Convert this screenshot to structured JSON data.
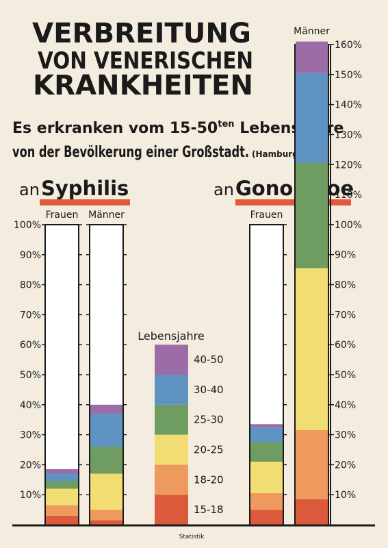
{
  "chart_data": {
    "type": "stacked-bar",
    "title_lines": [
      "VERBREITUNG",
      "VON VENERISCHEN",
      "KRANKHEITEN"
    ],
    "subtitle": {
      "pre": "Es erkranken vom 15-50",
      "sup": "ten",
      "post": " Lebensjahre",
      "line2": "von der Bevölkerung einer Großstadt.",
      "note": "(Hamburg)"
    },
    "panels": [
      {
        "prefix": "an",
        "name": "Syphilis"
      },
      {
        "prefix": "an",
        "name": "Gonorrhoe"
      }
    ],
    "categories": [
      "Frauen",
      "Männer",
      "Frauen",
      "Männer"
    ],
    "bar_axis": [
      "y",
      "y",
      "y",
      "y2"
    ],
    "legend_title": "Lebensjahre",
    "series": [
      {
        "name": "15-18",
        "color": "#dc5a3c",
        "values": [
          3,
          1.5,
          5,
          8.5
        ]
      },
      {
        "name": "18-20",
        "color": "#ee9a5e",
        "values": [
          3.5,
          3.5,
          5.5,
          23
        ]
      },
      {
        "name": "20-25",
        "color": "#f1dd72",
        "values": [
          5.5,
          12,
          10.5,
          54
        ]
      },
      {
        "name": "25-30",
        "color": "#6f9c60",
        "values": [
          2.5,
          9,
          6.5,
          35
        ]
      },
      {
        "name": "30-40",
        "color": "#5f93c2",
        "values": [
          2.5,
          11,
          5,
          30
        ]
      },
      {
        "name": "40-50",
        "color": "#9b6ca6",
        "values": [
          1.5,
          3,
          1,
          10.5
        ]
      }
    ],
    "ylim": [
      0,
      100
    ],
    "yticks": [
      {
        "value": 10,
        "label": "10%"
      },
      {
        "value": 20,
        "label": "20%"
      },
      {
        "value": 30,
        "label": "30%"
      },
      {
        "value": 40,
        "label": "40%"
      },
      {
        "value": 50,
        "label": "50%"
      },
      {
        "value": 60,
        "label": "60%"
      },
      {
        "value": 70,
        "label": "70%"
      },
      {
        "value": 80,
        "label": "80%"
      },
      {
        "value": 90,
        "label": "90%"
      },
      {
        "value": 100,
        "label": "100%"
      }
    ],
    "y2lim": [
      0,
      160
    ],
    "y2ticks": [
      {
        "value": 10,
        "label": "10%"
      },
      {
        "value": 20,
        "label": "20%"
      },
      {
        "value": 30,
        "label": "30%"
      },
      {
        "value": 40,
        "label": "40%"
      },
      {
        "value": 50,
        "label": "50%"
      },
      {
        "value": 60,
        "label": "60%"
      },
      {
        "value": 70,
        "label": "70%"
      },
      {
        "value": 80,
        "label": "80%"
      },
      {
        "value": 90,
        "label": "90%"
      },
      {
        "value": 100,
        "label": "100%"
      },
      {
        "value": 110,
        "label": "110%"
      },
      {
        "value": 120,
        "label": "120%"
      },
      {
        "value": 130,
        "label": "130%"
      },
      {
        "value": 140,
        "label": "140%"
      },
      {
        "value": 150,
        "label": "150%"
      },
      {
        "value": 160,
        "label": "160%"
      }
    ],
    "footer": "Statistik"
  }
}
